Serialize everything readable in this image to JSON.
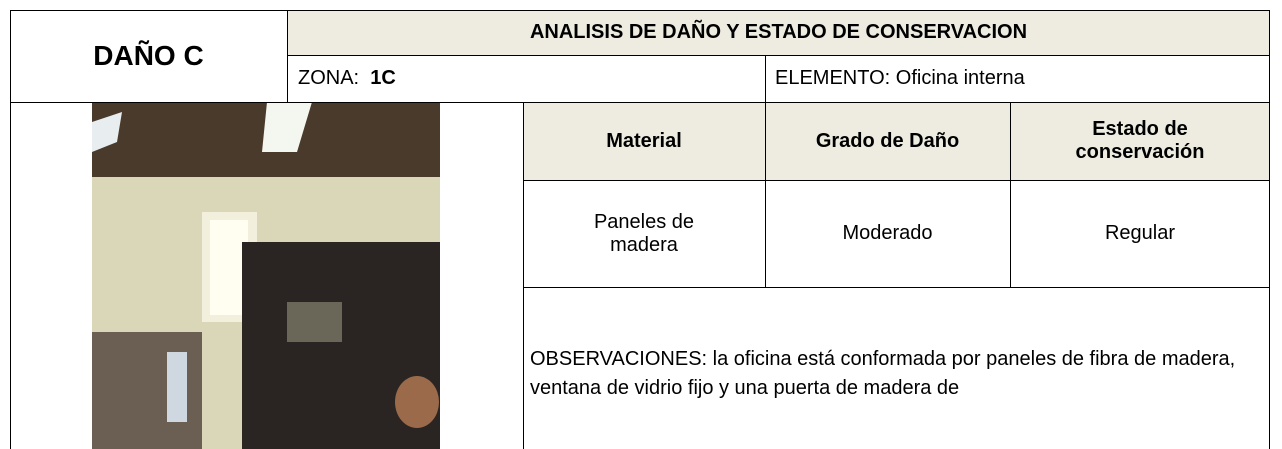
{
  "header": {
    "title": "DAÑO C",
    "heading": "ANALISIS DE DAÑO Y ESTADO DE CONSERVACION",
    "zona_label": "ZONA:",
    "zona_value": "1C",
    "elemento": "ELEMENTO: Oficina interna"
  },
  "table": {
    "columns": [
      "Material",
      "Grado de Daño",
      "Estado de conservación"
    ],
    "rows": [
      [
        "Paneles de madera",
        "Moderado",
        "Regular"
      ]
    ]
  },
  "observations": "OBSERVACIONES: la oficina está conformada por paneles de fibra de madera, ventana de vidrio fijo y una puerta de madera de"
}
